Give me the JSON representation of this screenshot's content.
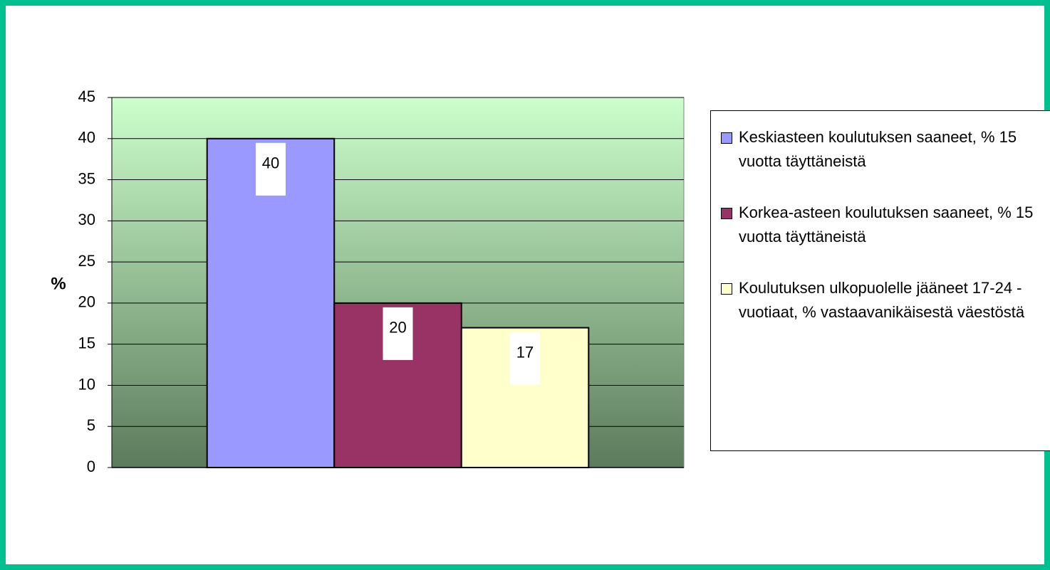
{
  "chart_data": {
    "type": "bar",
    "y_label": "%",
    "categories": [
      null
    ],
    "series": [
      {
        "name": "Keskiasteen koulutuksen saaneet, % 15 vuotta täyttäneistä",
        "color": "#9999ff",
        "values": [
          40
        ]
      },
      {
        "name": "Korkea-asteen koulutuksen saaneet, % 15 vuotta täyttäneistä",
        "color": "#993366",
        "values": [
          20
        ]
      },
      {
        "name": "Koulutuksen ulkopuolelle jääneet 17-24 -vuotiaat, % vastaavanikäisestä väestöstä",
        "color": "#ffffcc",
        "values": [
          17
        ]
      }
    ],
    "ylim": [
      0,
      45
    ],
    "yticks": [
      0,
      5,
      10,
      15,
      20,
      25,
      30,
      35,
      40,
      45
    ],
    "grid": true,
    "legend": "right"
  }
}
